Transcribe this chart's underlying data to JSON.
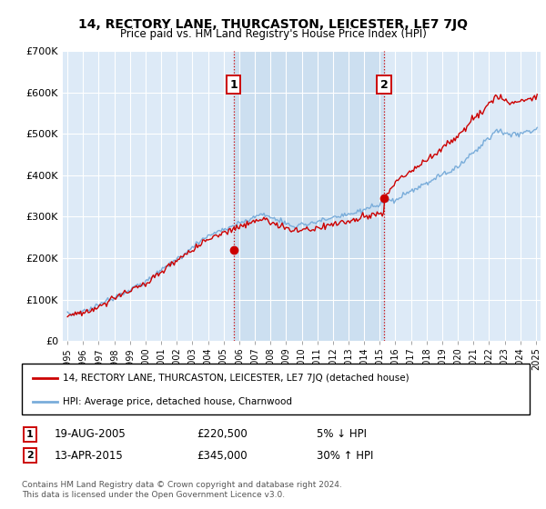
{
  "title": "14, RECTORY LANE, THURCASTON, LEICESTER, LE7 7JQ",
  "subtitle": "Price paid vs. HM Land Registry's House Price Index (HPI)",
  "hpi_color": "#7aadda",
  "price_color": "#cc0000",
  "annotation1_year": 2005.63,
  "annotation1_value": 220500,
  "annotation2_year": 2015.28,
  "annotation2_value": 345000,
  "annotation1_date": "19-AUG-2005",
  "annotation1_price": "£220,500",
  "annotation1_pct": "5% ↓ HPI",
  "annotation2_date": "13-APR-2015",
  "annotation2_price": "£345,000",
  "annotation2_pct": "30% ↑ HPI",
  "legend_line1": "14, RECTORY LANE, THURCASTON, LEICESTER, LE7 7JQ (detached house)",
  "legend_line2": "HPI: Average price, detached house, Charnwood",
  "footer": "Contains HM Land Registry data © Crown copyright and database right 2024.\nThis data is licensed under the Open Government Licence v3.0.",
  "ylim": [
    0,
    700000
  ],
  "yticks": [
    0,
    100000,
    200000,
    300000,
    400000,
    500000,
    600000,
    700000
  ],
  "ytick_labels": [
    "£0",
    "£100K",
    "£200K",
    "£300K",
    "£400K",
    "£500K",
    "£600K",
    "£700K"
  ],
  "bg_color": "#ddeaf7",
  "shade_color": "#ccdff0",
  "grid_color": "#ffffff",
  "xlim_start": 1994.7,
  "xlim_end": 2025.3
}
